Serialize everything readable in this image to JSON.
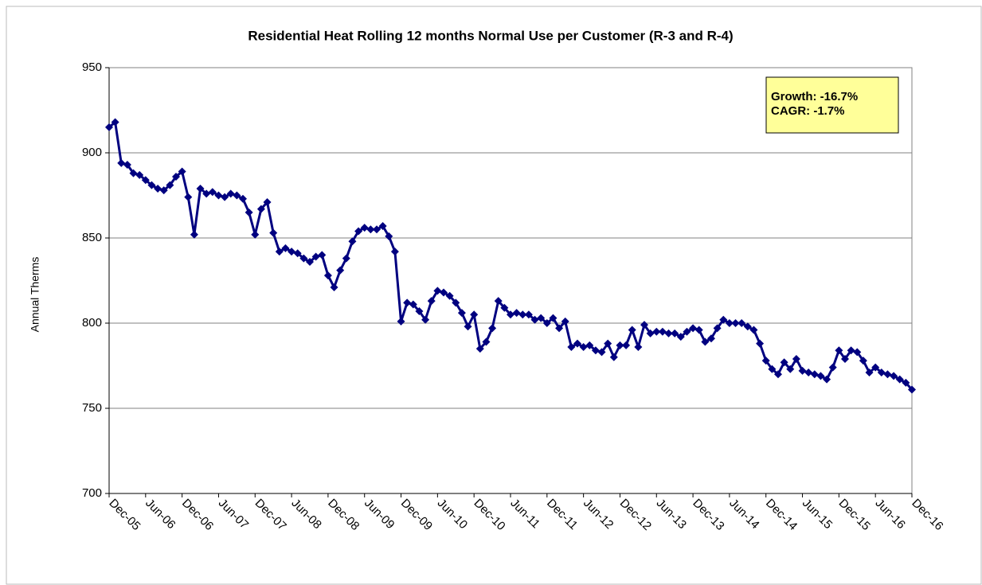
{
  "chart_data": {
    "type": "line",
    "title": "Residential Heat Rolling 12 months Normal Use per Customer (R-3 and R-4)",
    "y_label": "Annual Therms",
    "annotation": [
      "Growth: -16.7%",
      "CAGR: -1.7%"
    ],
    "categories": [
      "Dec-05",
      null,
      null,
      null,
      null,
      null,
      "Jun-06",
      null,
      null,
      null,
      null,
      null,
      "Dec-06",
      null,
      null,
      null,
      null,
      null,
      "Jun-07",
      null,
      null,
      null,
      null,
      null,
      "Dec-07",
      null,
      null,
      null,
      null,
      null,
      "Jun-08",
      null,
      null,
      null,
      null,
      null,
      "Dec-08",
      null,
      null,
      null,
      null,
      null,
      "Jun-09",
      null,
      null,
      null,
      null,
      null,
      "Dec-09",
      null,
      null,
      null,
      null,
      null,
      "Jun-10",
      null,
      null,
      null,
      null,
      null,
      "Dec-10",
      null,
      null,
      null,
      null,
      null,
      "Jun-11",
      null,
      null,
      null,
      null,
      null,
      "Dec-11",
      null,
      null,
      null,
      null,
      null,
      "Jun-12",
      null,
      null,
      null,
      null,
      null,
      "Dec-12",
      null,
      null,
      null,
      null,
      null,
      "Jun-13",
      null,
      null,
      null,
      null,
      null,
      "Dec-13",
      null,
      null,
      null,
      null,
      null,
      "Jun-14",
      null,
      null,
      null,
      null,
      null,
      "Dec-14",
      null,
      null,
      null,
      null,
      null,
      "Jun-15",
      null,
      null,
      null,
      null,
      null,
      "Dec-15",
      null,
      null,
      null,
      null,
      null,
      "Jun-16",
      null,
      null,
      null,
      null,
      null,
      "Dec-16"
    ],
    "series": [
      {
        "name": "Annual Therms",
        "color": "#000080",
        "values": [
          915,
          918,
          894,
          893,
          888,
          887,
          884,
          881,
          879,
          878,
          881,
          886,
          889,
          874,
          852,
          879,
          876,
          877,
          875,
          874,
          876,
          875,
          873,
          865,
          852,
          867,
          871,
          853,
          842,
          844,
          842,
          841,
          838,
          836,
          839,
          840,
          828,
          821,
          831,
          838,
          848,
          854,
          856,
          855,
          855,
          857,
          851,
          842,
          801,
          812,
          811,
          807,
          802,
          813,
          819,
          818,
          816,
          812,
          806,
          798,
          805,
          785,
          789,
          797,
          813,
          809,
          805,
          806,
          805,
          805,
          802,
          803,
          800,
          803,
          797,
          801,
          786,
          788,
          786,
          787,
          784,
          783,
          788,
          780,
          787,
          787,
          796,
          786,
          799,
          794,
          795,
          795,
          794,
          794,
          792,
          795,
          797,
          796,
          789,
          791,
          797,
          802,
          800,
          800,
          800,
          798,
          796,
          788,
          778,
          773,
          770,
          777,
          773,
          779,
          772,
          771,
          770,
          769,
          767,
          774,
          784,
          779,
          784,
          783,
          778,
          771,
          774,
          771,
          770,
          769,
          767,
          765,
          761
        ]
      }
    ],
    "ylim": [
      700,
      950
    ],
    "yticks": [
      700,
      750,
      800,
      850,
      900,
      950
    ],
    "grid": true
  }
}
